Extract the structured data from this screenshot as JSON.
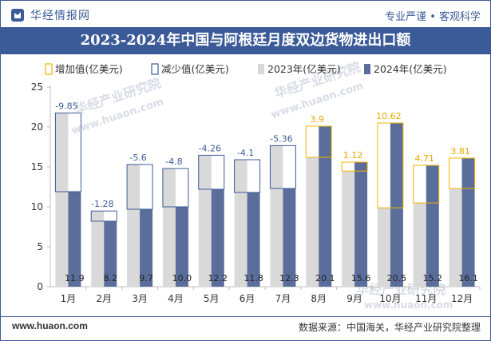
{
  "header": {
    "brand": "华经情报网",
    "slogan": "专业严谨 • 客观科学"
  },
  "title": "2023-2024年中国与阿根廷月度双边货物进出口额",
  "footer": {
    "website": "www.huaon.com",
    "source": "数据来源：中国海关，华经产业研究院整理"
  },
  "watermarks": [
    "华经产业研究院",
    "www.huaon.com"
  ],
  "colors": {
    "header_blue": "#3b5b98",
    "bar_2023": "#d9d9d9",
    "bar_2024": "#5b6e9b",
    "increase": "#f0b400",
    "decrease": "#3b5b98"
  },
  "chart_data": {
    "type": "bar",
    "categories": [
      "1月",
      "2月",
      "3月",
      "4月",
      "5月",
      "6月",
      "7月",
      "8月",
      "9月",
      "10月",
      "11月",
      "12月"
    ],
    "series": [
      {
        "name": "2023年(亿美元)",
        "values": [
          21.75,
          9.48,
          15.3,
          14.8,
          16.46,
          15.9,
          17.66,
          16.2,
          14.48,
          9.88,
          10.49,
          12.29
        ]
      },
      {
        "name": "2024年(亿美元)",
        "values": [
          11.9,
          8.2,
          9.7,
          10.0,
          12.2,
          11.8,
          12.3,
          20.1,
          15.6,
          20.5,
          15.2,
          16.1
        ]
      }
    ],
    "difference": {
      "increase_name": "增加值(亿美元)",
      "decrease_name": "减少值(亿美元)",
      "values": [
        -9.85,
        -1.28,
        -5.6,
        -4.8,
        -4.26,
        -4.1,
        -5.36,
        3.9,
        1.12,
        10.62,
        4.71,
        3.81
      ],
      "labels": [
        "-9.85",
        "-1.28",
        "-5.6",
        "-4.8",
        "-4.26",
        "-4.1",
        "-5.36",
        "3.9",
        "1.12",
        "10.62",
        "4.71",
        "3.81"
      ]
    },
    "value_labels_2024": [
      "11.9",
      "8.2",
      "9.7",
      "10.0",
      "12.2",
      "11.8",
      "12.3",
      "20.1",
      "15.6",
      "20.5",
      "15.2",
      "16.1"
    ],
    "yticks": [
      "0",
      "5",
      "10",
      "15",
      "20",
      "25"
    ],
    "ylim": [
      0,
      25
    ],
    "grid": false,
    "legend_position": "top"
  }
}
